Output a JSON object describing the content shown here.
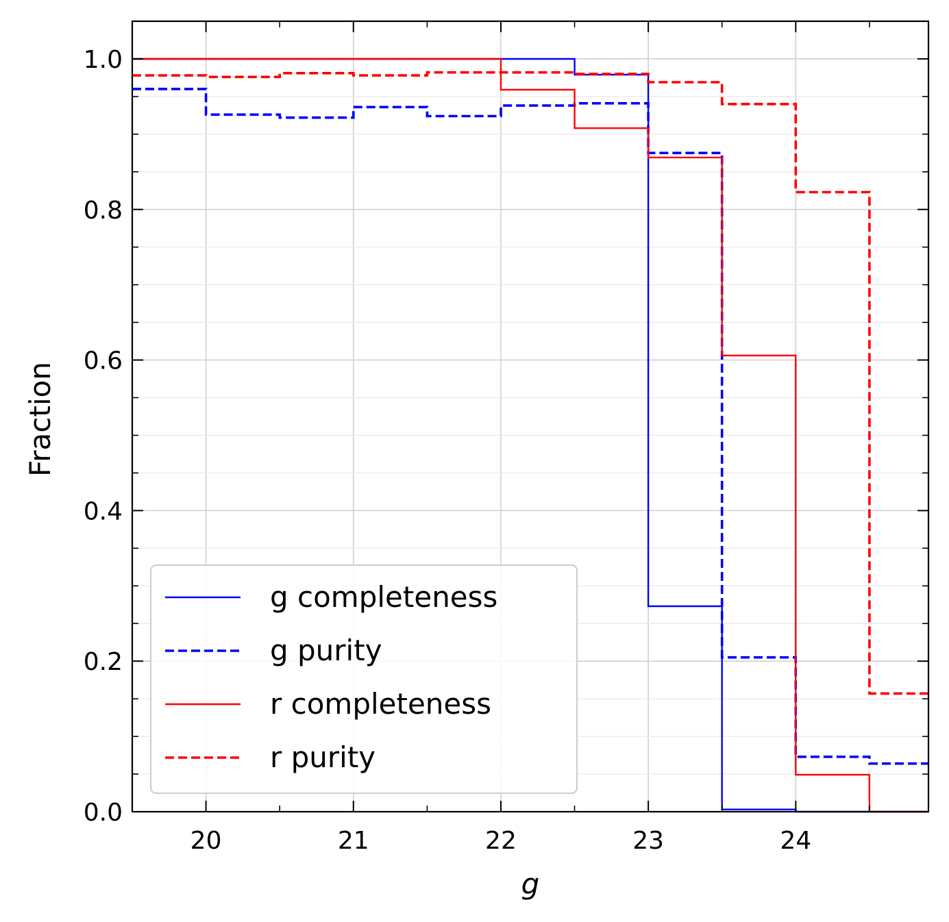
{
  "chart_data": {
    "type": "line",
    "step": "post",
    "xlabel": "g",
    "ylabel": "Fraction",
    "xlim": [
      19.5,
      24.9
    ],
    "ylim": [
      0.0,
      1.05
    ],
    "xticks": [
      "20",
      "21",
      "22",
      "23",
      "24"
    ],
    "xtick_values": [
      20,
      21,
      22,
      23,
      24
    ],
    "xminor_values": [
      20.5,
      21.5,
      22.5,
      23.5,
      24.5
    ],
    "yticks": [
      "0.0",
      "0.2",
      "0.4",
      "0.6",
      "0.8",
      "1.0"
    ],
    "ytick_values": [
      0.0,
      0.2,
      0.4,
      0.6,
      0.8,
      1.0
    ],
    "yminor_step": 0.05,
    "grid": true,
    "legend_position": "lower-left",
    "bin_edges": [
      19.5,
      20.0,
      20.5,
      21.0,
      21.5,
      22.0,
      22.5,
      23.0,
      23.5,
      24.0,
      24.5,
      24.9
    ],
    "series": [
      {
        "name": "g completeness",
        "color": "#0000ff",
        "dash": "solid",
        "values": [
          1.0,
          1.0,
          1.0,
          1.0,
          1.0,
          1.0,
          0.979,
          0.273,
          0.003,
          0.0,
          0.0
        ]
      },
      {
        "name": "g purity",
        "color": "#0000ff",
        "dash": "dashed",
        "values": [
          0.96,
          0.926,
          0.922,
          0.936,
          0.924,
          0.938,
          0.941,
          0.875,
          0.205,
          0.073,
          0.064
        ]
      },
      {
        "name": "r completeness",
        "color": "#ff0000",
        "dash": "solid",
        "values": [
          1.0,
          1.0,
          1.0,
          1.0,
          1.0,
          0.959,
          0.908,
          0.869,
          0.606,
          0.049,
          0.0
        ]
      },
      {
        "name": "r purity",
        "color": "#ff0000",
        "dash": "dashed",
        "values": [
          0.978,
          0.976,
          0.981,
          0.978,
          0.982,
          0.982,
          0.98,
          0.969,
          0.94,
          0.823,
          0.157
        ]
      }
    ]
  }
}
